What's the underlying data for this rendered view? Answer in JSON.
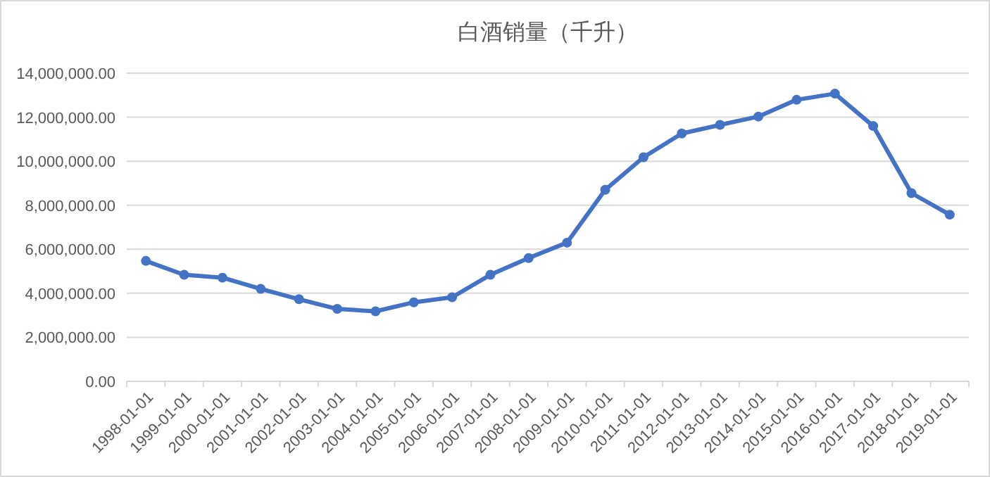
{
  "chart_data": {
    "type": "line",
    "title": "白酒销量（千升）",
    "categories": [
      "1998-01-01",
      "1999-01-01",
      "2000-01-01",
      "2001-01-01",
      "2002-01-01",
      "2003-01-01",
      "2004-01-01",
      "2005-01-01",
      "2006-01-01",
      "2007-01-01",
      "2008-01-01",
      "2009-01-01",
      "2010-01-01",
      "2011-01-01",
      "2012-01-01",
      "2013-01-01",
      "2014-01-01",
      "2015-01-01",
      "2016-01-01",
      "2017-01-01",
      "2018-01-01",
      "2019-01-01"
    ],
    "series": [
      {
        "color": "#4472c4",
        "values": [
          5470000,
          4840000,
          4710000,
          4200000,
          3730000,
          3290000,
          3180000,
          3590000,
          3820000,
          4840000,
          5600000,
          6300000,
          8700000,
          10180000,
          11260000,
          11650000,
          12030000,
          12790000,
          13070000,
          11600000,
          8550000,
          7570000
        ]
      }
    ],
    "ylim": [
      0,
      14000000
    ],
    "yticks": [
      {
        "value": 0,
        "label": "0.00"
      },
      {
        "value": 2000000,
        "label": "2,000,000.00"
      },
      {
        "value": 4000000,
        "label": "4,000,000.00"
      },
      {
        "value": 6000000,
        "label": "6,000,000.00"
      },
      {
        "value": 8000000,
        "label": "8,000,000.00"
      },
      {
        "value": 10000000,
        "label": "10,000,000.00"
      },
      {
        "value": 12000000,
        "label": "12,000,000.00"
      },
      {
        "value": 14000000,
        "label": "14,000,000.00"
      }
    ],
    "grid": "y",
    "marker": "circle",
    "line_style": "solid"
  }
}
